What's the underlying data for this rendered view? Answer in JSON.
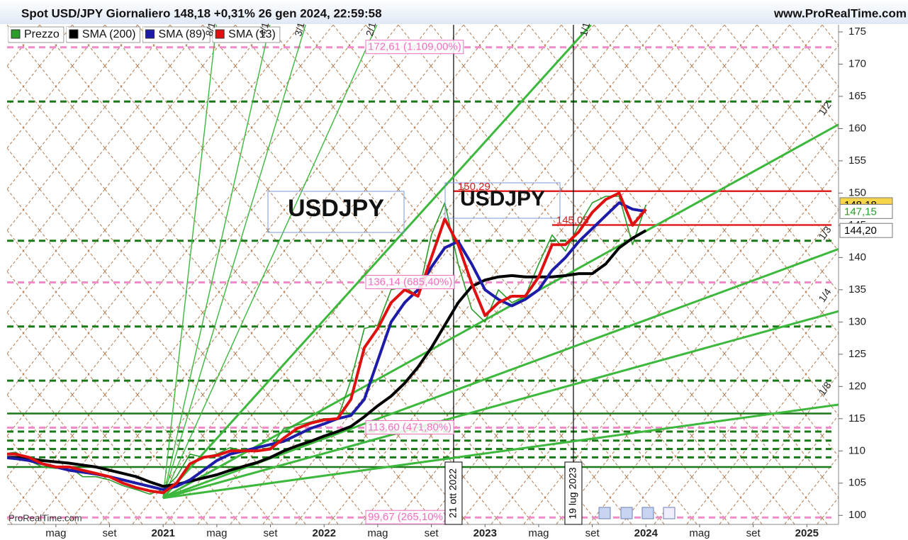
{
  "chart_data": {
    "type": "line",
    "title": "Spot USD/JPY Giornaliero 148,18 +0,31% 26 gen 2024, 22:59:58",
    "site": "www.ProRealTime.com",
    "watermark": "ProRealTime.com",
    "xlim": [
      "2020-01-12",
      "2025-03-12"
    ],
    "ylim": [
      98.6,
      176.1
    ],
    "yticks": [
      100,
      105,
      110,
      115,
      120,
      125,
      130,
      135,
      140,
      145,
      150,
      155,
      160,
      165,
      170,
      175
    ],
    "xticks": [
      {
        "value": "2020-05",
        "label": "mag"
      },
      {
        "value": "2020-09",
        "label": "set"
      },
      {
        "value": "2021-01",
        "label": "2021"
      },
      {
        "value": "2021-05",
        "label": "mag"
      },
      {
        "value": "2021-09",
        "label": "set"
      },
      {
        "value": "2022-01",
        "label": "2022"
      },
      {
        "value": "2022-05",
        "label": "mag"
      },
      {
        "value": "2022-09",
        "label": "set"
      },
      {
        "value": "2023-01",
        "label": "2023"
      },
      {
        "value": "2023-05",
        "label": "mag"
      },
      {
        "value": "2023-09",
        "label": "set"
      },
      {
        "value": "2024-01",
        "label": "2024"
      },
      {
        "value": "2024-05",
        "label": "mag"
      },
      {
        "value": "2024-09",
        "label": "set"
      },
      {
        "value": "2025-01",
        "label": "2025"
      }
    ],
    "x": [
      "2020-01",
      "2020-02",
      "2020-03",
      "2020-04",
      "2020-05",
      "2020-06",
      "2020-07",
      "2020-08",
      "2020-09",
      "2020-10",
      "2020-11",
      "2020-12",
      "2021-01",
      "2021-02",
      "2021-03",
      "2021-04",
      "2021-05",
      "2021-06",
      "2021-07",
      "2021-08",
      "2021-09",
      "2021-10",
      "2021-11",
      "2021-12",
      "2022-01",
      "2022-02",
      "2022-03",
      "2022-04",
      "2022-05",
      "2022-06",
      "2022-07",
      "2022-08",
      "2022-09",
      "2022-10",
      "2022-11",
      "2022-12",
      "2023-01",
      "2023-02",
      "2023-03",
      "2023-04",
      "2023-05",
      "2023-06",
      "2023-07",
      "2023-08",
      "2023-09",
      "2023-10",
      "2023-11",
      "2023-12",
      "2024-01"
    ],
    "series": [
      {
        "name": "Prezzo",
        "color": "#2a9d2a",
        "width": 1.6,
        "values": [
          109.5,
          109.8,
          108.5,
          107.5,
          107.3,
          107.5,
          106,
          106,
          105.5,
          104.6,
          104,
          103.3,
          104,
          106,
          109.5,
          109,
          109.5,
          110.5,
          110,
          110,
          110.5,
          113.5,
          114,
          114.5,
          115,
          115,
          121,
          129,
          129.5,
          135,
          135.5,
          134,
          143.5,
          148.5,
          139,
          132,
          130,
          135,
          133,
          134,
          139,
          143.5,
          141,
          145,
          148.5,
          149.5,
          149.5,
          142,
          148.18
        ]
      },
      {
        "name": "SMA (200)",
        "color": "#000000",
        "width": 4,
        "values": [
          109,
          109,
          108.8,
          108.5,
          108.3,
          108.1,
          107.8,
          107.5,
          107,
          106.5,
          106,
          105.2,
          104.5,
          104.8,
          105.3,
          105.8,
          106.3,
          107,
          107.6,
          108.2,
          109,
          110,
          110.8,
          111.5,
          112.3,
          113,
          113.8,
          115.3,
          117,
          118.5,
          120.5,
          123,
          126,
          129.5,
          133,
          135.5,
          136.5,
          137,
          137.2,
          137,
          137,
          137,
          137.2,
          137.5,
          137.5,
          139,
          141.5,
          143,
          144.2
        ]
      },
      {
        "name": "SMA (89)",
        "color": "#1c1ca8",
        "width": 4,
        "values": [
          109,
          108.8,
          108.5,
          108,
          107.5,
          107,
          106.7,
          106.4,
          106,
          105.5,
          105,
          104.5,
          104,
          104.5,
          105.5,
          107,
          108.5,
          109.5,
          110,
          110.5,
          111,
          111.5,
          112.5,
          113.5,
          114.2,
          115,
          115.5,
          118,
          124,
          130,
          133,
          135,
          138.5,
          141.5,
          142.5,
          139,
          135,
          133.5,
          132.5,
          133.5,
          135,
          138,
          140,
          142.5,
          144.5,
          146.5,
          148.5,
          147.5,
          147.15
        ]
      },
      {
        "name": "SMA (13)",
        "color": "#e01010",
        "width": 4,
        "values": [
          109.5,
          109.5,
          109,
          108,
          107.5,
          107.5,
          107,
          106.5,
          106,
          105,
          104.3,
          103.8,
          103.5,
          105,
          108,
          109,
          109.3,
          110,
          110,
          110,
          110.3,
          112,
          113.5,
          114.3,
          114.8,
          115,
          118,
          126,
          129,
          133,
          135,
          134,
          140,
          146,
          142,
          136,
          131,
          133,
          134,
          134,
          137,
          142,
          142,
          144,
          147,
          149,
          150,
          145,
          147.5
        ]
      }
    ],
    "levels": [
      {
        "value": 172.61,
        "color": "#f08cc8",
        "dashed": true,
        "label": "172,61 (1.109,00%)"
      },
      {
        "value": 164.2,
        "color": "#1a7a1a",
        "dashed": true
      },
      {
        "value": 142.6,
        "color": "#1a7a1a",
        "dashed": true
      },
      {
        "value": 136.14,
        "color": "#f08cc8",
        "dashed": true,
        "label": "136,14 (685,40%)"
      },
      {
        "value": 129.3,
        "color": "#1a7a1a",
        "dashed": true
      },
      {
        "value": 120.9,
        "color": "#1a7a1a",
        "dashed": true
      },
      {
        "value": 115.8,
        "color": "#1a7a1a",
        "dashed": false
      },
      {
        "value": 113.6,
        "color": "#f08cc8",
        "dashed": true,
        "label": "113,60 (471,80%)"
      },
      {
        "value": 113,
        "color": "#1a7a1a",
        "dashed": true
      },
      {
        "value": 111.6,
        "color": "#1a7a1a",
        "dashed": true
      },
      {
        "value": 110.3,
        "color": "#1a7a1a",
        "dashed": true
      },
      {
        "value": 109,
        "color": "#1a7a1a",
        "dashed": true
      },
      {
        "value": 107.5,
        "color": "#1a7a1a",
        "dashed": false
      },
      {
        "value": 99.67,
        "color": "#f08cc8",
        "dashed": true,
        "label": "99,67 (265,10%)"
      },
      {
        "value": 150.29,
        "color": "#e02020",
        "dashed": false,
        "label": "150,29",
        "from": "2022-10-21"
      },
      {
        "value": 145.05,
        "color": "#e02020",
        "dashed": false,
        "label": "145,05",
        "from": "2023-06"
      }
    ],
    "markers": [
      {
        "x": "2022-10-21",
        "label": "21 ott 2022"
      },
      {
        "x": "2023-07-19",
        "label": "19 lug 2023"
      }
    ],
    "fan": {
      "origin_x": "2020-12-31",
      "origin_y": 102.7,
      "unit_slope": 2.3,
      "color": "#3cb83c",
      "ratios": [
        {
          "value": 8,
          "label": "8/1"
        },
        {
          "value": 4,
          "label": "4/1"
        },
        {
          "value": 3,
          "label": "3/1"
        },
        {
          "value": 2,
          "label": "2/1"
        },
        {
          "value": 1,
          "label": "1/1"
        },
        {
          "value": 0.5,
          "label": "1/2"
        },
        {
          "value": 0.3333,
          "label": "1/3"
        },
        {
          "value": 0.25,
          "label": "1/4"
        },
        {
          "value": 0.125,
          "label": "1/8"
        }
      ]
    },
    "last_labels": [
      {
        "value": 148.18,
        "label": "148,18",
        "bg": "#f6d54a",
        "fg": "#000"
      },
      {
        "value": 147.15,
        "label": "147,15",
        "bg": "#ffffff",
        "fg": "#2a9d2a"
      },
      {
        "value": 144.2,
        "label": "144,20",
        "bg": "#ffffff",
        "fg": "#000"
      }
    ],
    "annotations": [
      "USDJPY",
      "USDJPY"
    ]
  }
}
